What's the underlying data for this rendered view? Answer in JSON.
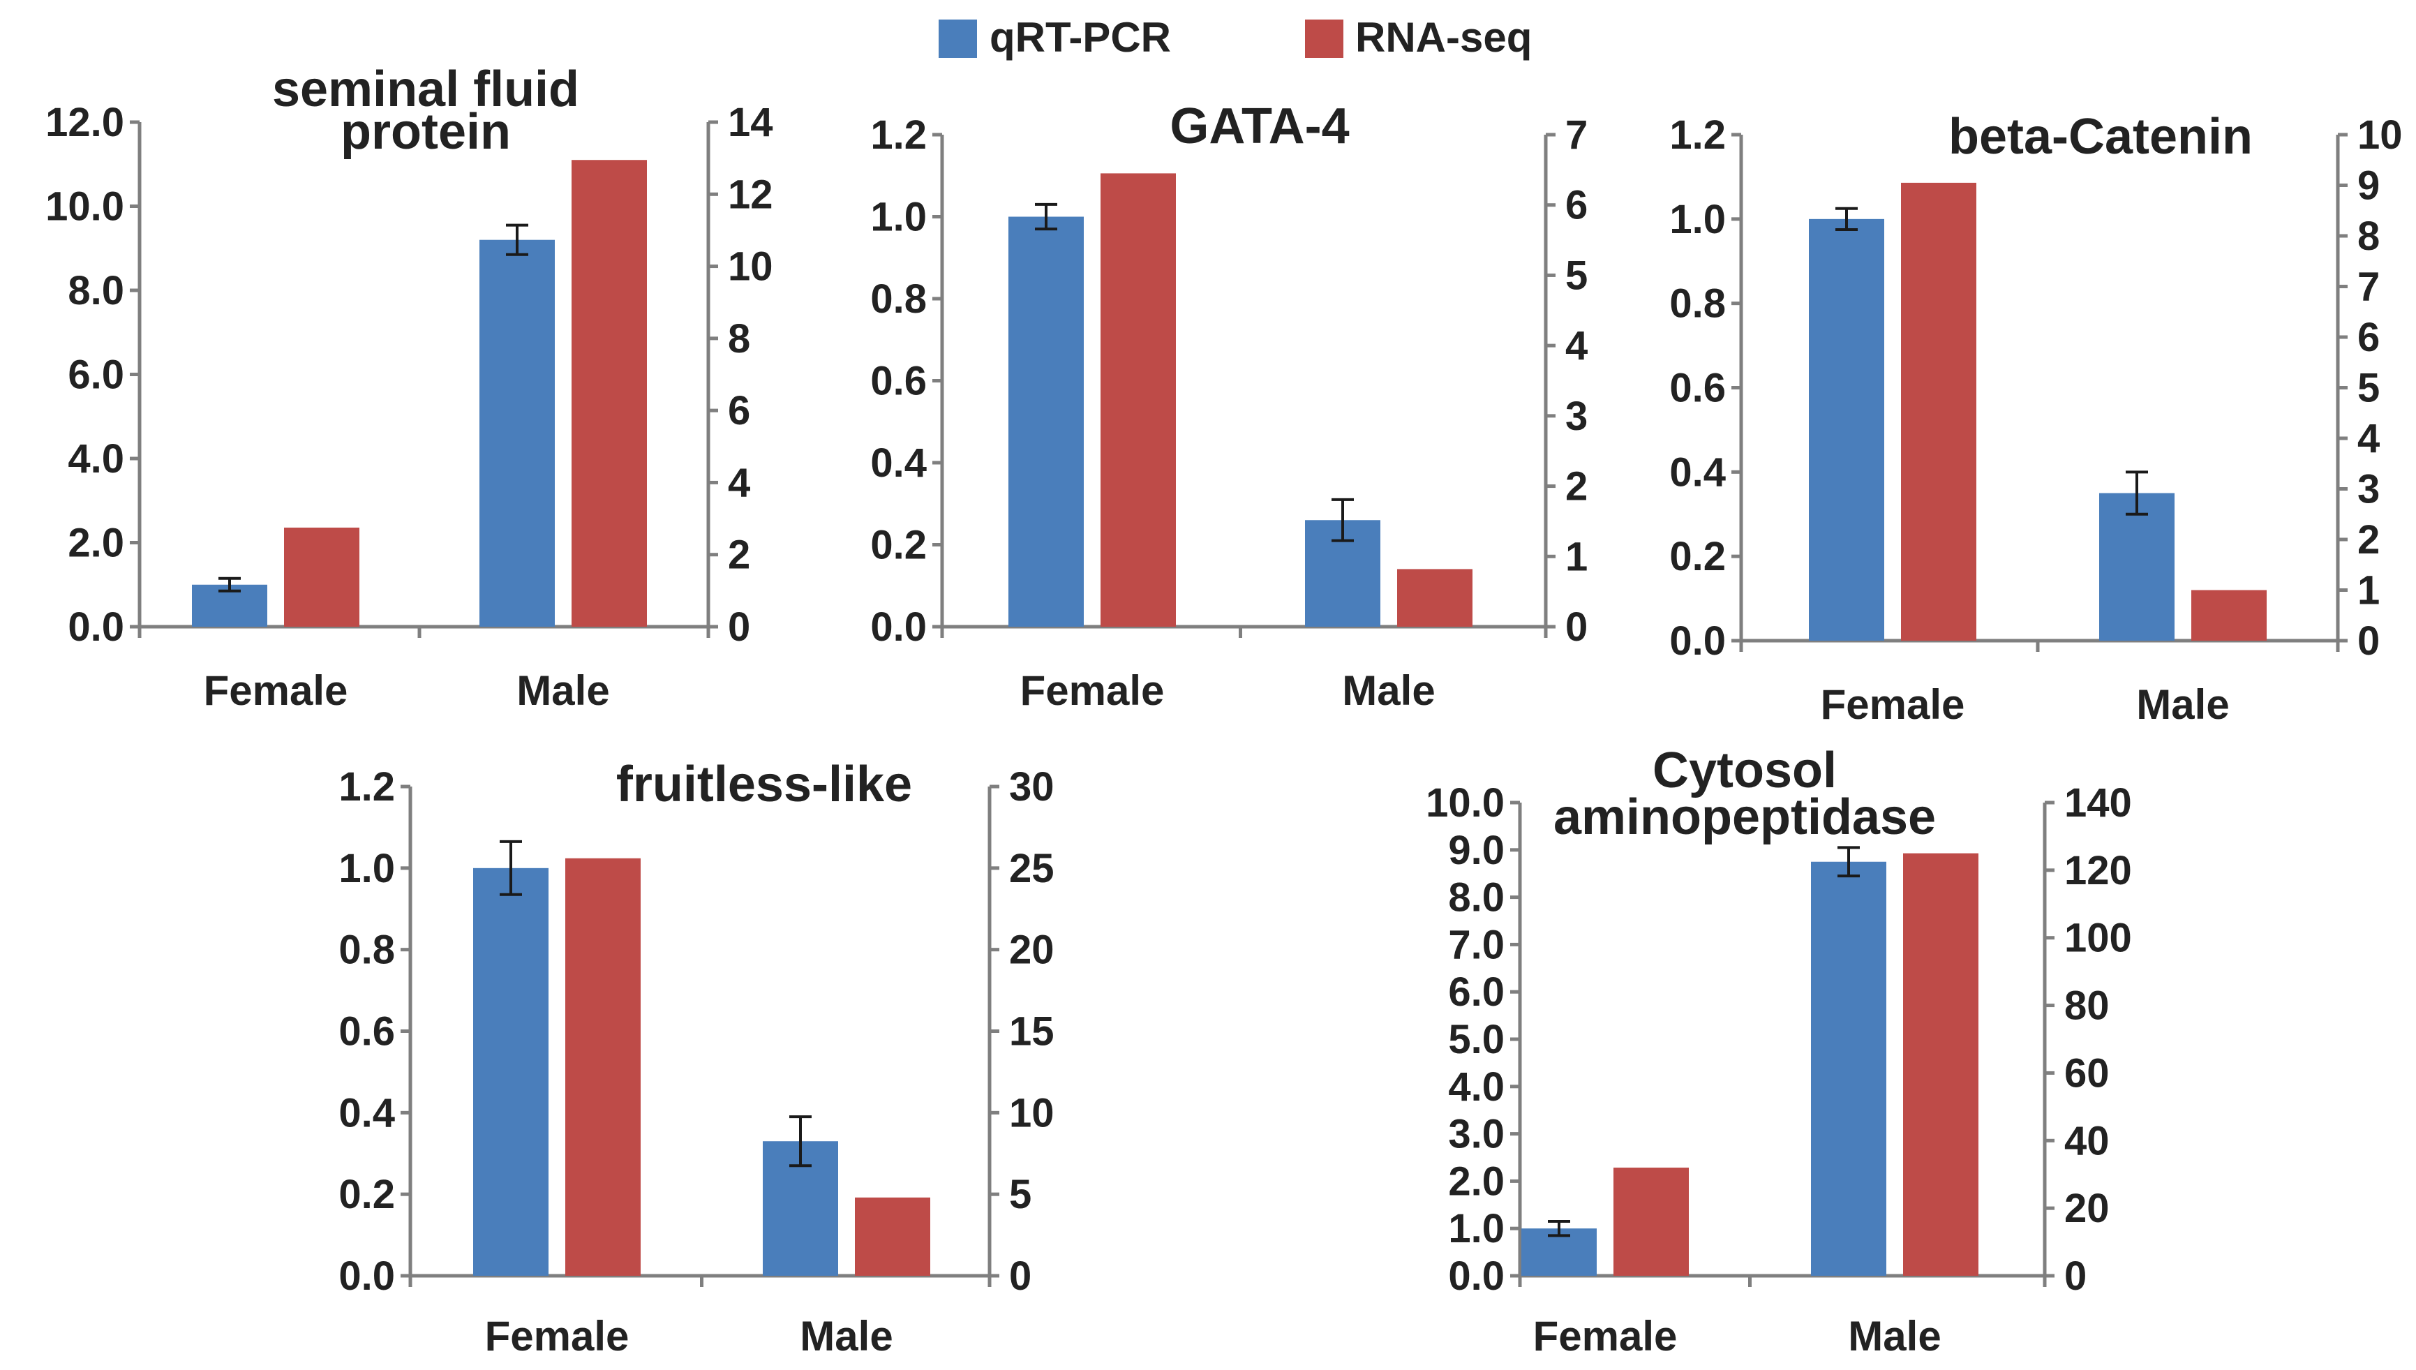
{
  "legend": {
    "items": [
      {
        "label": "qRT-PCR",
        "color": "#4a7ebb"
      },
      {
        "label": "RNA-seq",
        "color": "#be4b48"
      }
    ]
  },
  "chart_data": [
    {
      "type": "bar",
      "title_lines": [
        "seminal fluid",
        "protein"
      ],
      "categories": [
        "Female",
        "Male"
      ],
      "series": [
        {
          "name": "qRT-PCR",
          "axis": "left",
          "values": [
            1.0,
            9.2
          ],
          "errors": [
            0.15,
            0.35
          ],
          "color": "#4a7ebb"
        },
        {
          "name": "RNA-seq",
          "axis": "right",
          "values": [
            2.75,
            12.95
          ],
          "errors": [
            0,
            0
          ],
          "color": "#be4b48"
        }
      ],
      "y_left": {
        "min": 0,
        "max": 12,
        "ticks": [
          "0.0",
          "2.0",
          "4.0",
          "6.0",
          "8.0",
          "10.0",
          "12.0"
        ]
      },
      "y_right": {
        "min": 0,
        "max": 14,
        "ticks": [
          "0",
          "2",
          "4",
          "6",
          "8",
          "10",
          "12",
          "14"
        ]
      }
    },
    {
      "type": "bar",
      "title_lines": [
        "GATA-4"
      ],
      "categories": [
        "Female",
        "Male"
      ],
      "series": [
        {
          "name": "qRT-PCR",
          "axis": "left",
          "values": [
            1.0,
            0.26
          ],
          "errors": [
            0.03,
            0.05
          ],
          "color": "#4a7ebb"
        },
        {
          "name": "RNA-seq",
          "axis": "right",
          "values": [
            6.45,
            0.82
          ],
          "errors": [
            0,
            0
          ],
          "color": "#be4b48"
        }
      ],
      "y_left": {
        "min": 0,
        "max": 1.2,
        "ticks": [
          "0.0",
          "0.2",
          "0.4",
          "0.6",
          "0.8",
          "1.0",
          "1.2"
        ]
      },
      "y_right": {
        "min": 0,
        "max": 7,
        "ticks": [
          "0",
          "1",
          "2",
          "3",
          "4",
          "5",
          "6",
          "7"
        ]
      }
    },
    {
      "type": "bar",
      "title_lines": [
        "beta-Catenin"
      ],
      "categories": [
        "Female",
        "Male"
      ],
      "series": [
        {
          "name": "qRT-PCR",
          "axis": "left",
          "values": [
            1.0,
            0.35
          ],
          "errors": [
            0.025,
            0.05
          ],
          "color": "#4a7ebb"
        },
        {
          "name": "RNA-seq",
          "axis": "right",
          "values": [
            9.05,
            1.0
          ],
          "errors": [
            0,
            0
          ],
          "color": "#be4b48"
        }
      ],
      "y_left": {
        "min": 0,
        "max": 1.2,
        "ticks": [
          "0.0",
          "0.2",
          "0.4",
          "0.6",
          "0.8",
          "1.0",
          "1.2"
        ]
      },
      "y_right": {
        "min": 0,
        "max": 10,
        "ticks": [
          "0",
          "1",
          "2",
          "3",
          "4",
          "5",
          "6",
          "7",
          "8",
          "9",
          "10"
        ]
      }
    },
    {
      "type": "bar",
      "title_lines": [
        "fruitless-like"
      ],
      "categories": [
        "Female",
        "Male"
      ],
      "series": [
        {
          "name": "qRT-PCR",
          "axis": "left",
          "values": [
            1.0,
            0.33
          ],
          "errors": [
            0.065,
            0.06
          ],
          "color": "#4a7ebb"
        },
        {
          "name": "RNA-seq",
          "axis": "right",
          "values": [
            25.6,
            4.8
          ],
          "errors": [
            0,
            0
          ],
          "color": "#be4b48"
        }
      ],
      "y_left": {
        "min": 0,
        "max": 1.2,
        "ticks": [
          "0.0",
          "0.2",
          "0.4",
          "0.6",
          "0.8",
          "1.0",
          "1.2"
        ]
      },
      "y_right": {
        "min": 0,
        "max": 30,
        "ticks": [
          "0",
          "5",
          "10",
          "15",
          "20",
          "25",
          "30"
        ]
      }
    },
    {
      "type": "bar",
      "title_lines": [
        "Cytosol",
        "aminopeptidase"
      ],
      "categories": [
        "Female",
        "Male"
      ],
      "series": [
        {
          "name": "qRT-PCR",
          "axis": "left",
          "values": [
            1.0,
            8.75
          ],
          "errors": [
            0.15,
            0.3
          ],
          "color": "#4a7ebb"
        },
        {
          "name": "RNA-seq",
          "axis": "right",
          "values": [
            32,
            125
          ],
          "errors": [
            0,
            0
          ],
          "color": "#be4b48"
        }
      ],
      "y_left": {
        "min": 0,
        "max": 10,
        "ticks": [
          "0.0",
          "1.0",
          "2.0",
          "3.0",
          "4.0",
          "5.0",
          "6.0",
          "7.0",
          "8.0",
          "9.0",
          "10.0"
        ]
      },
      "y_right": {
        "min": 0,
        "max": 140,
        "ticks": [
          "0",
          "20",
          "40",
          "60",
          "80",
          "100",
          "120",
          "140"
        ]
      }
    }
  ]
}
